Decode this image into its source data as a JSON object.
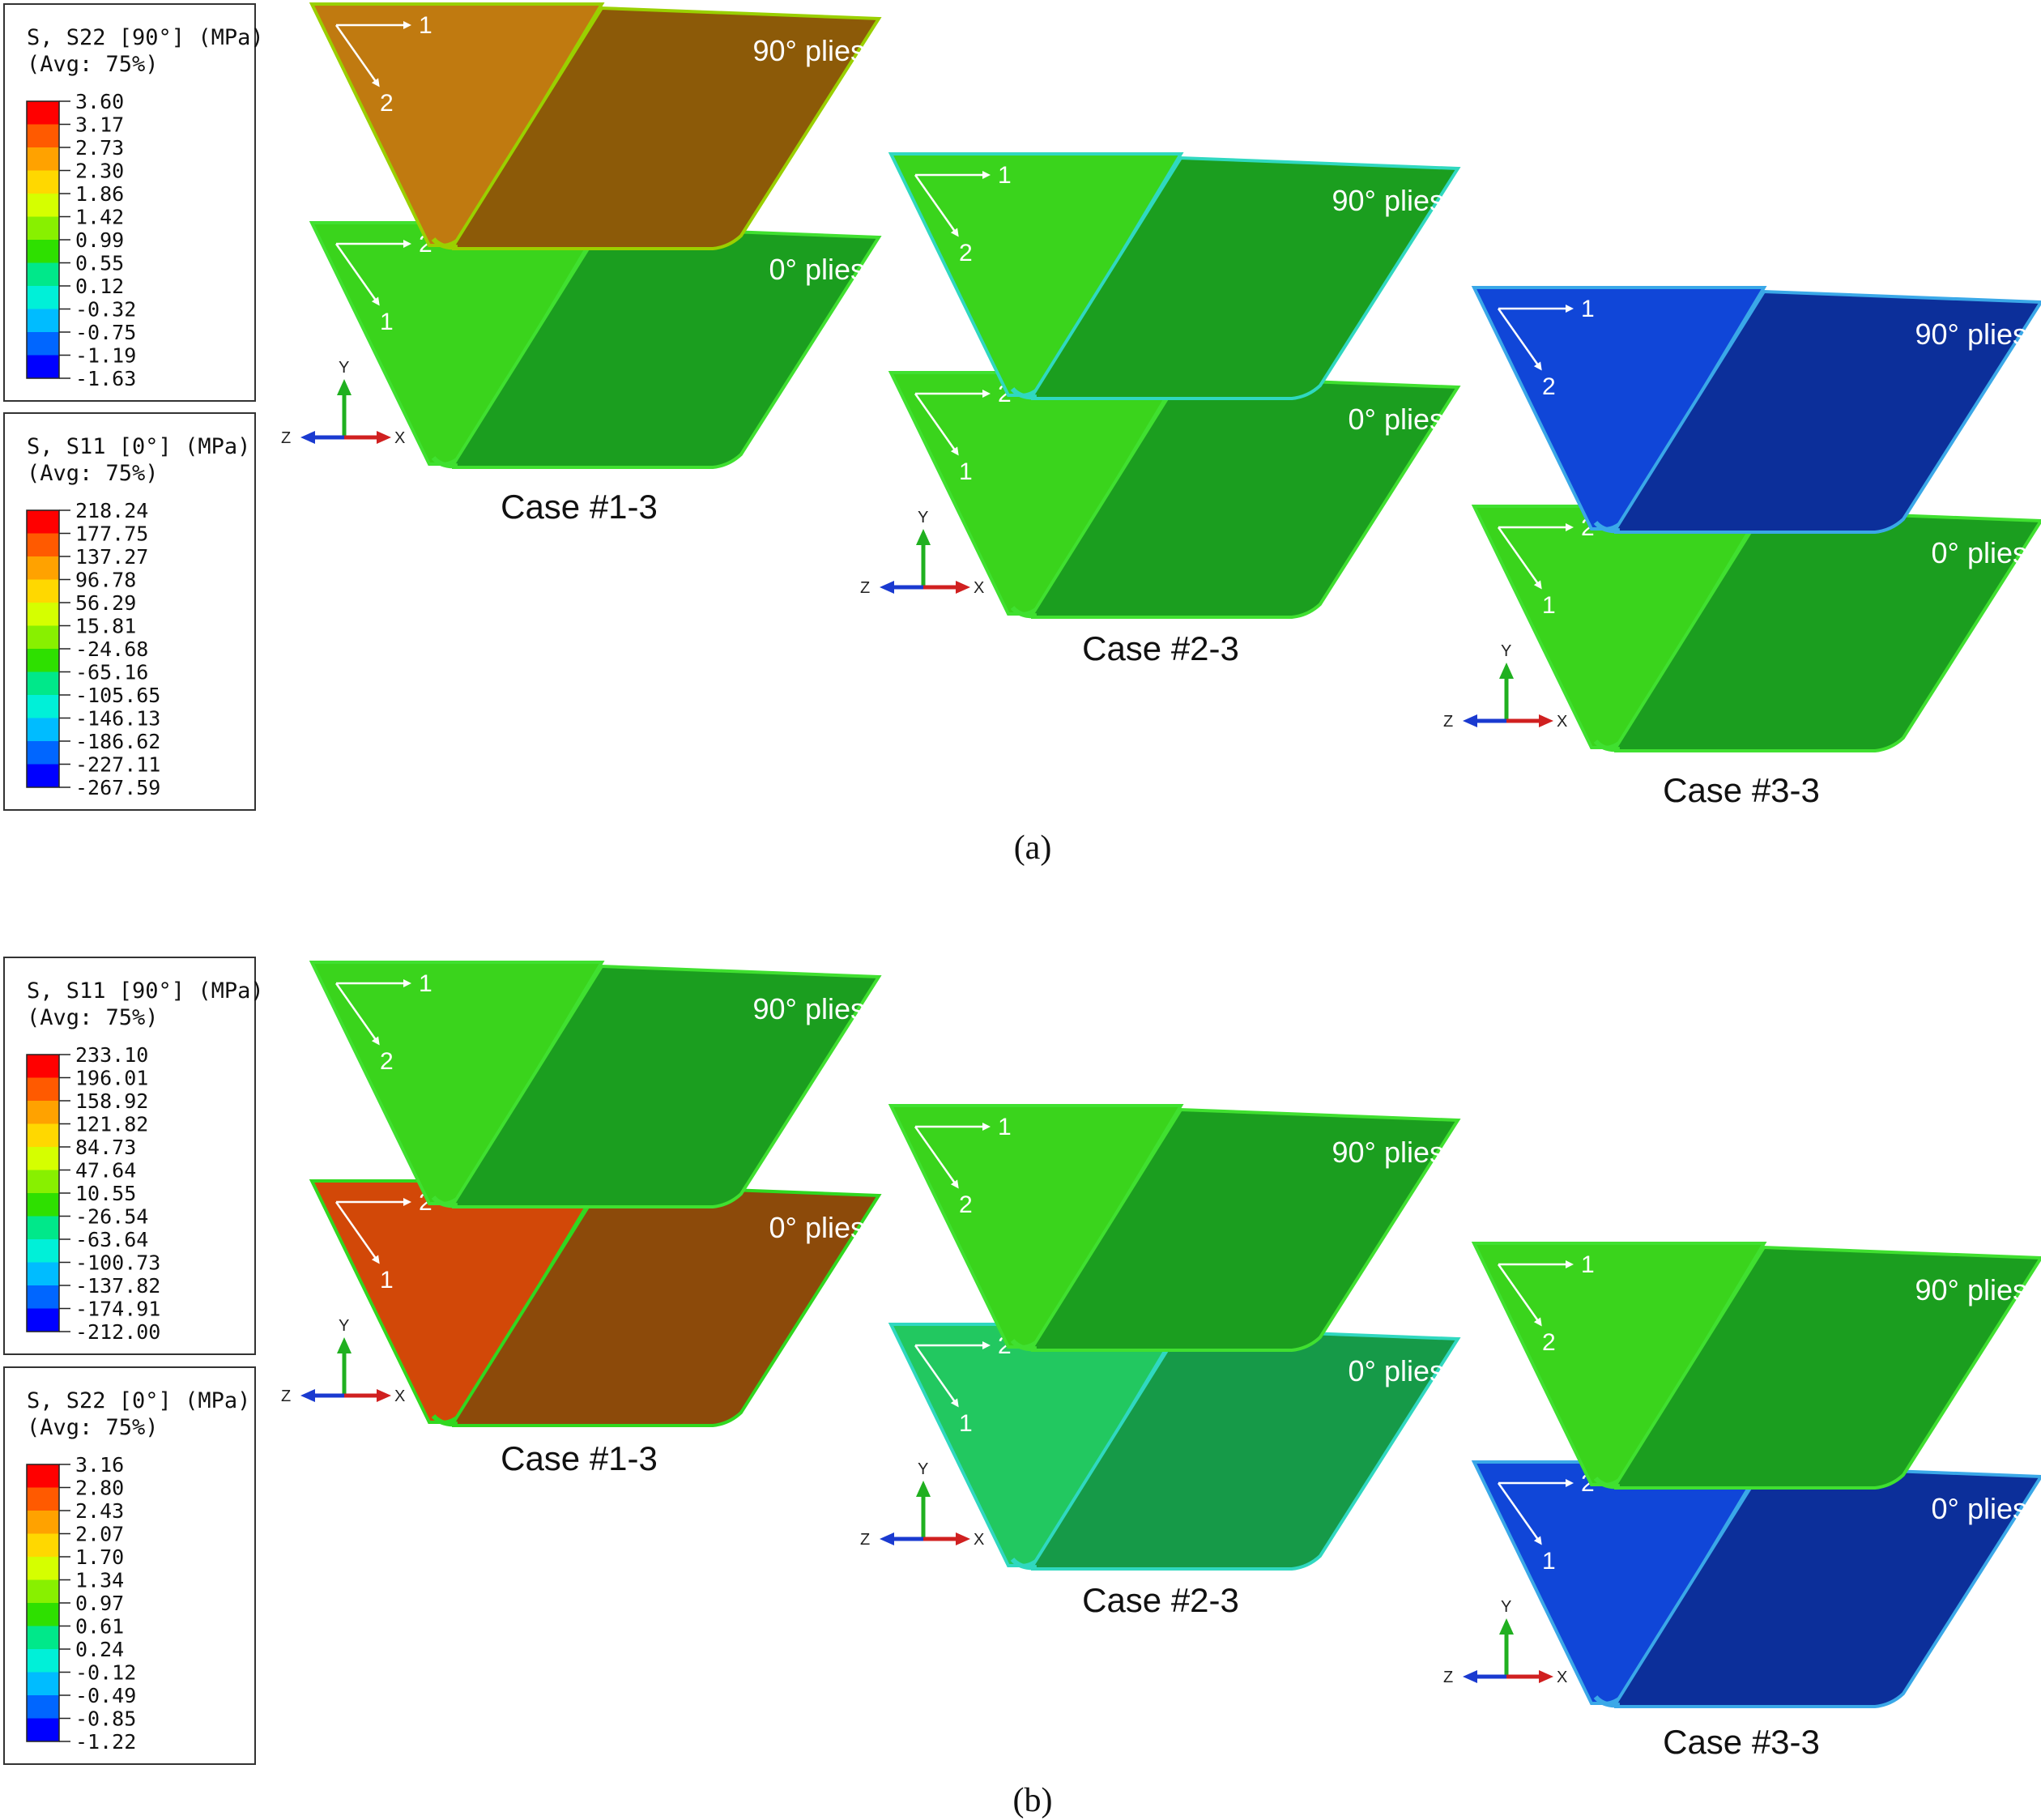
{
  "palette": [
    "#ff0000",
    "#ff5a00",
    "#ffa200",
    "#ffd800",
    "#d5ff00",
    "#88f000",
    "#2ee000",
    "#00e88a",
    "#00f0d8",
    "#00bcff",
    "#0066ff",
    "#0000ff"
  ],
  "panels": [
    {
      "label": "(a)",
      "legends": [
        {
          "title": "S, S22 [90°] (MPa)",
          "avg": "(Avg: 75%)",
          "values": [
            "3.60",
            "3.17",
            "2.73",
            "2.30",
            "1.86",
            "1.42",
            "0.99",
            "0.55",
            "0.12",
            "-0.32",
            "-0.75",
            "-1.19",
            "-1.63"
          ]
        },
        {
          "title": "S, S11 [0°]  (MPa)",
          "avg": "(Avg: 75%)",
          "values": [
            "218.24",
            "177.75",
            "137.27",
            "96.78",
            "56.29",
            "15.81",
            "-24.68",
            "-65.16",
            "-105.65",
            "-146.13",
            "-186.62",
            "-227.11",
            "-267.59"
          ]
        }
      ],
      "cases": [
        {
          "label": "Case #1-3",
          "top_plies": "90° plies",
          "bottom_plies": "0° plies",
          "top_color": "#c07a10",
          "top_color_dark": "#8c5a08",
          "top_edge": "#9ad000",
          "bottom_color": "#3ad41c",
          "bottom_color_dark": "#1b9e1f",
          "bottom_edge": "#40e030"
        },
        {
          "label": "Case #2-3",
          "top_plies": "90° plies",
          "bottom_plies": "0° plies",
          "top_color": "#3ad41c",
          "top_color_dark": "#1b9e1f",
          "top_edge": "#30d8c0",
          "bottom_color": "#3ad41c",
          "bottom_color_dark": "#1b9e1f",
          "bottom_edge": "#40e030"
        },
        {
          "label": "Case #3-3",
          "top_plies": "90° plies",
          "bottom_plies": "0° plies",
          "top_color": "#1046d8",
          "top_color_dark": "#0c2f9a",
          "top_edge": "#3aa8e8",
          "bottom_color": "#3ad41c",
          "bottom_color_dark": "#1b9e1f",
          "bottom_edge": "#40e030"
        }
      ]
    },
    {
      "label": "(b)",
      "legends": [
        {
          "title": "S, S11 [90°] (MPa)",
          "avg": "(Avg: 75%)",
          "values": [
            "233.10",
            "196.01",
            "158.92",
            "121.82",
            "84.73",
            "47.64",
            "10.55",
            "-26.54",
            "-63.64",
            "-100.73",
            "-137.82",
            "-174.91",
            "-212.00"
          ]
        },
        {
          "title": "S, S22 [0°]  (MPa)",
          "avg": "(Avg: 75%)",
          "values": [
            "3.16",
            "2.80",
            "2.43",
            "2.07",
            "1.70",
            "1.34",
            "0.97",
            "0.61",
            "0.24",
            "-0.12",
            "-0.49",
            "-0.85",
            "-1.22"
          ]
        }
      ],
      "cases": [
        {
          "label": "Case #1-3",
          "top_plies": "90° plies",
          "bottom_plies": "0° plies",
          "top_color": "#3ad41c",
          "top_color_dark": "#1b9e1f",
          "top_edge": "#40e030",
          "bottom_color": "#d24808",
          "bottom_color_dark": "#8c4a0a",
          "bottom_edge": "#30d820"
        },
        {
          "label": "Case #2-3",
          "top_plies": "90° plies",
          "bottom_plies": "0° plies",
          "top_color": "#3ad41c",
          "top_color_dark": "#1b9e1f",
          "top_edge": "#40e030",
          "bottom_color": "#22c860",
          "bottom_color_dark": "#169a48",
          "bottom_edge": "#30d8c0"
        },
        {
          "label": "Case #3-3",
          "top_plies": "90° plies",
          "bottom_plies": "0° plies",
          "top_color": "#3ad41c",
          "top_color_dark": "#1b9e1f",
          "top_edge": "#40e030",
          "bottom_color": "#1046d8",
          "bottom_color_dark": "#0c2f9a",
          "bottom_edge": "#3aa8e8"
        }
      ]
    }
  ],
  "axis": {
    "y": "Y",
    "x": "X",
    "z": "Z"
  },
  "ply_dirs": {
    "top_horizontal": "1",
    "top_diagonal": "2",
    "bottom_horizontal": "2",
    "bottom_diagonal": "1"
  }
}
